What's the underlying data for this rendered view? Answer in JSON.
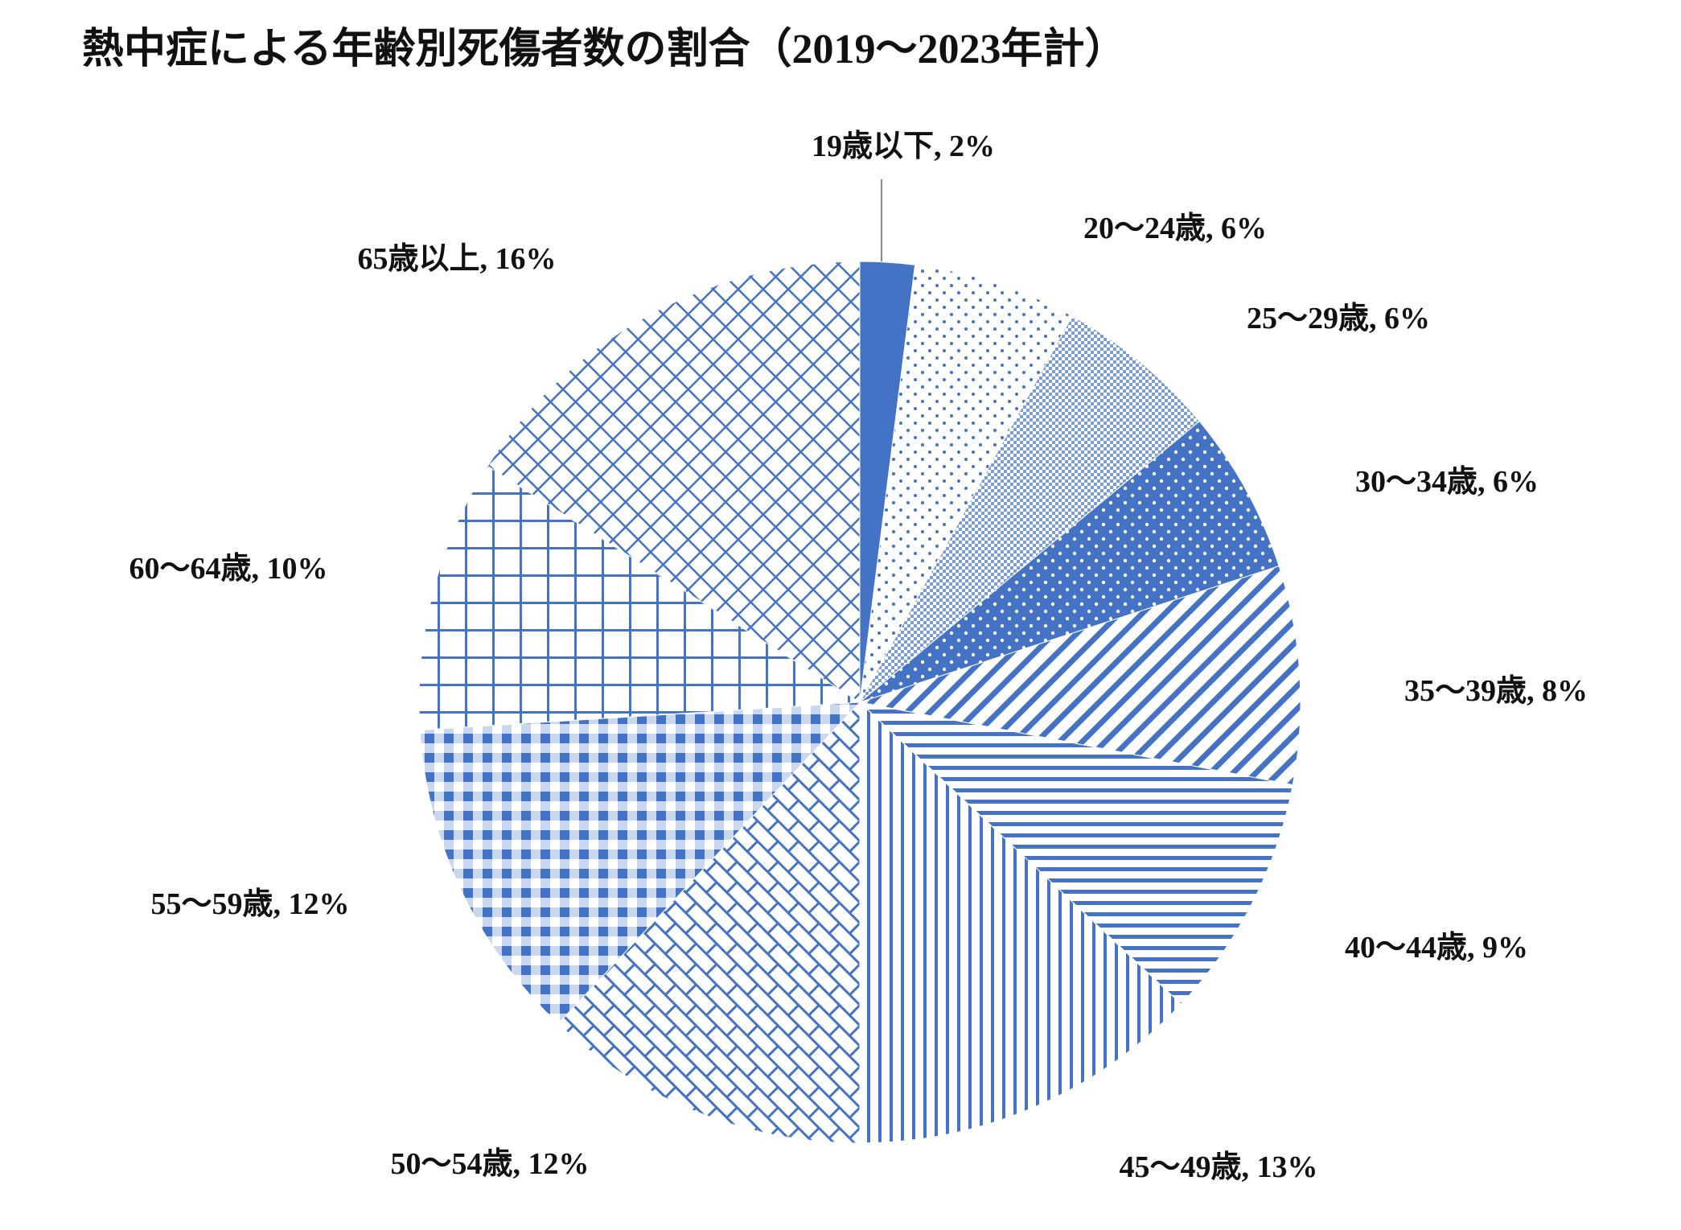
{
  "chart_data": {
    "type": "pie",
    "title": "熱中症による年齢別死傷者数の割合（2019～2023年計）",
    "categories": [
      "19歳以下",
      "20～24歳",
      "25～29歳",
      "30～34歳",
      "35～39歳",
      "40～44歳",
      "45～49歳",
      "50～54歳",
      "55～59歳",
      "60～64歳",
      "65歳以上"
    ],
    "values": [
      2,
      6,
      6,
      6,
      8,
      9,
      13,
      12,
      12,
      10,
      16
    ],
    "value_labels": [
      "2%",
      "6%",
      "6%",
      "6%",
      "8%",
      "9%",
      "13%",
      "12%",
      "12%",
      "10%",
      "16%"
    ],
    "label_separator": ", ",
    "color": "#4472c4",
    "patterns": [
      "solid",
      "dots-sparse",
      "dots-dense",
      "dots-on-solid",
      "diagonal",
      "horizontal",
      "vertical",
      "brick",
      "checker",
      "grid",
      "diagonal-cross"
    ]
  }
}
